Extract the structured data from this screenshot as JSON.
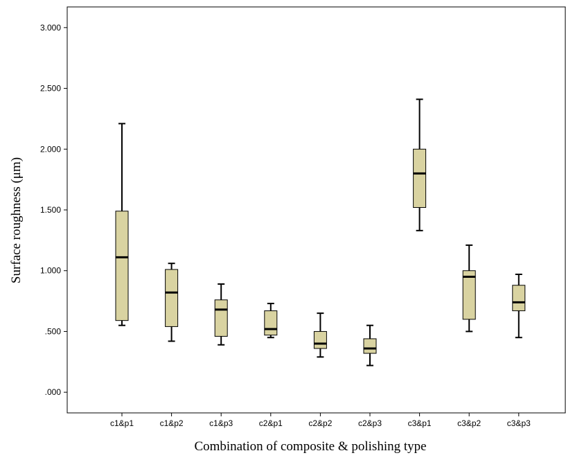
{
  "chart_data": {
    "type": "box",
    "title": "",
    "xlabel": "Combination of composite & polishing type",
    "ylabel": "Surface roughness (μm)",
    "ylim": [
      -0.17,
      3.17
    ],
    "yticks": [
      0.0,
      0.5,
      1.0,
      1.5,
      2.0,
      2.5,
      3.0
    ],
    "ytick_labels": [
      ".000",
      ".500",
      "1.000",
      "1.500",
      "2.000",
      "2.500",
      "3.000"
    ],
    "categories": [
      "c1&p1",
      "c1&p2",
      "c1&p3",
      "c2&p1",
      "c2&p2",
      "c2&p3",
      "c3&p1",
      "c3&p2",
      "c3&p3"
    ],
    "boxes": [
      {
        "min": 0.55,
        "q1": 0.59,
        "median": 1.11,
        "q3": 1.49,
        "max": 2.21
      },
      {
        "min": 0.42,
        "q1": 0.54,
        "median": 0.82,
        "q3": 1.01,
        "max": 1.06
      },
      {
        "min": 0.39,
        "q1": 0.46,
        "median": 0.68,
        "q3": 0.76,
        "max": 0.89
      },
      {
        "min": 0.45,
        "q1": 0.47,
        "median": 0.52,
        "q3": 0.67,
        "max": 0.73
      },
      {
        "min": 0.29,
        "q1": 0.36,
        "median": 0.4,
        "q3": 0.5,
        "max": 0.65
      },
      {
        "min": 0.22,
        "q1": 0.32,
        "median": 0.36,
        "q3": 0.44,
        "max": 0.55
      },
      {
        "min": 1.33,
        "q1": 1.52,
        "median": 1.8,
        "q3": 2.0,
        "max": 2.41
      },
      {
        "min": 0.5,
        "q1": 0.6,
        "median": 0.95,
        "q3": 1.0,
        "max": 1.21
      },
      {
        "min": 0.45,
        "q1": 0.67,
        "median": 0.74,
        "q3": 0.88,
        "max": 0.97
      }
    ],
    "box_color": "#d9d3a1",
    "grid": false,
    "legend": "none"
  }
}
